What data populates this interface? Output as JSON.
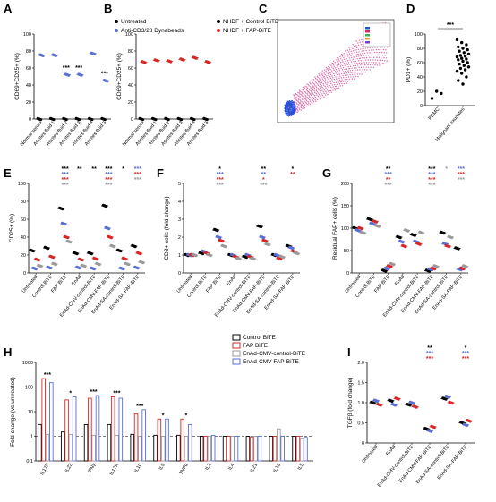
{
  "colors": {
    "black": "#000000",
    "blue": "#5b6fd6",
    "red": "#d62728",
    "grey": "#9a9a9a",
    "pink": "#e8a0c8"
  },
  "chart_data": [
    {
      "id": "A",
      "type": "scatter",
      "letter": "A",
      "ylabel": "CD69+CD25+ (%)",
      "ylim": [
        0,
        100
      ],
      "yticks": [
        0,
        20,
        40,
        60,
        80,
        100
      ],
      "categories": [
        "Normal serum",
        "Ascites fluid 1",
        "Ascites fluid 2",
        "Ascites fluid 3",
        "Ascites fluid 4",
        "Ascites fluid 5"
      ],
      "legend": [
        "Untreated",
        "Anti-CD3/28 Dynabeads"
      ],
      "series": [
        {
          "name": "Untreated",
          "color": "black",
          "values": [
            0,
            0,
            0,
            0,
            0,
            0
          ]
        },
        {
          "name": "Anti-CD3/28 Dynabeads",
          "color": "blue",
          "values": [
            75,
            75,
            52,
            52,
            77,
            45
          ]
        }
      ],
      "sig": [
        {
          "i": 2,
          "text": "***",
          "y": 56
        },
        {
          "i": 3,
          "text": "***",
          "y": 56
        },
        {
          "i": 5,
          "text": "***",
          "y": 49
        }
      ]
    },
    {
      "id": "B",
      "type": "scatter",
      "letter": "B",
      "ylabel": "CD69+CD25+ (%)",
      "ylim": [
        0,
        100
      ],
      "yticks": [
        0,
        20,
        40,
        60,
        80,
        100
      ],
      "categories": [
        "Normal serum",
        "Ascites fluid 1",
        "Ascites fluid 2",
        "Ascites fluid 3",
        "Ascites fluid 4",
        "Ascites fluid 5"
      ],
      "legend": [
        "NHDF + Control BiTE",
        "NHDF + FAP-BiTE"
      ],
      "series": [
        {
          "name": "NHDF + Control BiTE",
          "color": "black",
          "values": [
            0,
            0,
            0,
            0,
            0,
            0
          ]
        },
        {
          "name": "NHDF + FAP-BiTE",
          "color": "red",
          "values": [
            67,
            69,
            68,
            70,
            72,
            67
          ]
        }
      ]
    },
    {
      "id": "D",
      "type": "scatter",
      "letter": "D",
      "ylabel": "PD1+ (%)",
      "ylim": [
        0,
        100
      ],
      "yticks": [
        0,
        20,
        40,
        60,
        80,
        100
      ],
      "categories": [
        "PBMC",
        "Malignant exudates"
      ],
      "series": [
        {
          "name": "PBMC",
          "color": "black",
          "points": [
            [
              0,
              10
            ],
            [
              0,
              20
            ],
            [
              0,
              17
            ]
          ]
        },
        {
          "name": "Malignant exudates",
          "color": "black",
          "points": [
            [
              1,
              92
            ],
            [
              1,
              88
            ],
            [
              1,
              85
            ],
            [
              1,
              82
            ],
            [
              1,
              80
            ],
            [
              1,
              78
            ],
            [
              1,
              76
            ],
            [
              1,
              74
            ],
            [
              1,
              72
            ],
            [
              1,
              70
            ],
            [
              1,
              69
            ],
            [
              1,
              68
            ],
            [
              1,
              66
            ],
            [
              1,
              65
            ],
            [
              1,
              64
            ],
            [
              1,
              62
            ],
            [
              1,
              60
            ],
            [
              1,
              58
            ],
            [
              1,
              56
            ],
            [
              1,
              54
            ],
            [
              1,
              52
            ],
            [
              1,
              50
            ],
            [
              1,
              48
            ],
            [
              1,
              45
            ],
            [
              1,
              40
            ],
            [
              1,
              35
            ],
            [
              1,
              30
            ]
          ]
        }
      ],
      "sig": [
        {
          "text": "***"
        }
      ]
    },
    {
      "id": "E",
      "type": "scatter",
      "letter": "E",
      "ylabel": "CD25+ (%)",
      "ylim": [
        0,
        100
      ],
      "yticks": [
        0,
        20,
        40,
        60,
        80,
        100
      ],
      "categories": [
        "Untreated",
        "Control BiTE",
        "FAP BiTE",
        "EnAd",
        "EnAd-CMV-control-BiTE",
        "EnAd-CMV-FAP-BiTE",
        "EnAd-SA-control-BiTE",
        "EnAd-SA-FAP-BiTE"
      ],
      "series": [
        {
          "name": "black",
          "color": "black",
          "values": [
            25,
            28,
            72,
            22,
            22,
            75,
            25,
            30
          ]
        },
        {
          "name": "blue",
          "color": "blue",
          "values": [
            5,
            6,
            55,
            6,
            5,
            50,
            5,
            6
          ]
        },
        {
          "name": "red",
          "color": "red",
          "values": [
            15,
            18,
            40,
            15,
            16,
            40,
            16,
            22
          ]
        },
        {
          "name": "grey",
          "color": "grey",
          "values": [
            8,
            10,
            35,
            8,
            10,
            30,
            10,
            12
          ]
        }
      ],
      "sig": [
        {
          "i": 2,
          "lines": [
            [
              "***",
              "black"
            ],
            [
              "***",
              "blue"
            ],
            [
              "***",
              "red"
            ],
            [
              "***",
              "grey"
            ]
          ]
        },
        {
          "i": 3,
          "lines": [
            [
              "**",
              "black"
            ]
          ]
        },
        {
          "i": 4,
          "lines": [
            [
              "**",
              "black"
            ]
          ]
        },
        {
          "i": 5,
          "lines": [
            [
              "***",
              "black"
            ],
            [
              "***",
              "blue"
            ],
            [
              "***",
              "red"
            ],
            [
              "***",
              "grey"
            ]
          ]
        },
        {
          "i": 6,
          "lines": [
            [
              "*",
              "black"
            ]
          ]
        },
        {
          "i": 7,
          "lines": [
            [
              "***",
              "blue"
            ],
            [
              "***",
              "red"
            ],
            [
              "***",
              "grey"
            ]
          ]
        }
      ]
    },
    {
      "id": "F",
      "type": "scatter",
      "letter": "F",
      "ylabel": "CD3+ cells (fold change)",
      "ylim": [
        0,
        5
      ],
      "yticks": [
        0,
        1,
        2,
        3,
        4,
        5
      ],
      "categories": [
        "Untreated",
        "Control BiTE",
        "FAP BiTE",
        "EnAd",
        "EnAd-CMV-control-BiTE",
        "EnAd-CMV-FAP-BiTE",
        "EnAd-SA-control-BiTE",
        "EnAd-SA-FAP-BiTE"
      ],
      "series": [
        {
          "name": "black",
          "color": "black",
          "values": [
            1.0,
            1.1,
            2.4,
            1.0,
            0.9,
            2.6,
            1.0,
            1.5
          ]
        },
        {
          "name": "blue",
          "color": "blue",
          "values": [
            1.0,
            1.2,
            2.0,
            1.0,
            1.0,
            2.0,
            1.0,
            1.4
          ]
        },
        {
          "name": "red",
          "color": "red",
          "values": [
            1.0,
            1.1,
            1.8,
            0.9,
            0.9,
            1.8,
            0.8,
            1.2
          ]
        },
        {
          "name": "grey",
          "color": "grey",
          "values": [
            1.0,
            1.0,
            1.5,
            0.8,
            0.8,
            1.6,
            0.9,
            1.1
          ]
        }
      ],
      "sig": [
        {
          "i": 2,
          "lines": [
            [
              "*",
              "black"
            ],
            [
              "***",
              "blue"
            ],
            [
              "***",
              "red"
            ],
            [
              "***",
              "grey"
            ]
          ]
        },
        {
          "i": 5,
          "lines": [
            [
              "**",
              "black"
            ],
            [
              "**",
              "blue"
            ],
            [
              "*",
              "red"
            ],
            [
              "***",
              "grey"
            ]
          ]
        },
        {
          "i": 7,
          "lines": [
            [
              "*",
              "black"
            ],
            [
              "**",
              "red"
            ]
          ]
        }
      ]
    },
    {
      "id": "G",
      "type": "scatter",
      "letter": "G",
      "ylabel": "Residual FAP+ cells (%)",
      "ylim": [
        0,
        200
      ],
      "yticks": [
        0,
        50,
        100,
        150,
        200
      ],
      "categories": [
        "Untreated",
        "Control BiTE",
        "FAP BiTE",
        "EnAd",
        "EnAd-CMV-control-BiTE",
        "EnAd-CMV-FAP-BiTE",
        "EnAd-SA-control-BiTE",
        "EnAd-SA-FAP-BiTE"
      ],
      "series": [
        {
          "name": "black",
          "color": "black",
          "values": [
            100,
            120,
            5,
            80,
            85,
            5,
            90,
            55
          ]
        },
        {
          "name": "blue",
          "color": "blue",
          "values": [
            95,
            110,
            10,
            70,
            70,
            8,
            65,
            8
          ]
        },
        {
          "name": "red",
          "color": "red",
          "values": [
            100,
            115,
            15,
            60,
            65,
            10,
            60,
            10
          ]
        },
        {
          "name": "grey",
          "color": "grey",
          "values": [
            90,
            105,
            20,
            95,
            90,
            15,
            80,
            15
          ]
        }
      ],
      "sig": [
        {
          "i": 2,
          "lines": [
            [
              "**",
              "black"
            ],
            [
              "***",
              "blue"
            ],
            [
              "**",
              "red"
            ],
            [
              "***",
              "grey"
            ]
          ]
        },
        {
          "i": 5,
          "lines": [
            [
              "***",
              "black"
            ],
            [
              "***",
              "blue"
            ],
            [
              "***",
              "red"
            ],
            [
              "***",
              "grey"
            ]
          ]
        },
        {
          "i": 6,
          "lines": [
            [
              "*",
              "grey"
            ]
          ]
        },
        {
          "i": 7,
          "lines": [
            [
              "***",
              "blue"
            ],
            [
              "***",
              "red"
            ],
            [
              "***",
              "grey"
            ]
          ]
        }
      ]
    },
    {
      "id": "H",
      "type": "bar",
      "letter": "H",
      "ylabel": "Fold change (vs untreated)",
      "scale": "log",
      "ylim": [
        0.1,
        1000
      ],
      "yticks": [
        0.1,
        1,
        10,
        100,
        1000
      ],
      "ytick_labels": [
        "0.1",
        "1",
        "10",
        "100",
        "1000"
      ],
      "categories": [
        "IL17F",
        "IL22",
        "IFNγ",
        "IL17A",
        "IL10",
        "IL9",
        "TNFα",
        "IL2",
        "IL4",
        "IL21",
        "IL13",
        "IL5"
      ],
      "legend": [
        "Control BiTE",
        "FAP BiTE",
        "EnAd-CMV-control-BiTE",
        "EnAd-CMV-FAP-BiTE"
      ],
      "series": [
        {
          "name": "Control BiTE",
          "color": "black",
          "values": [
            3,
            1.5,
            3,
            3,
            1.2,
            1.1,
            1.1,
            1,
            1,
            1,
            1,
            1
          ]
        },
        {
          "name": "FAP BiTE",
          "color": "red",
          "values": [
            220,
            30,
            35,
            40,
            8,
            5,
            5,
            1,
            1,
            0.9,
            1,
            1
          ]
        },
        {
          "name": "EnAd-CMV-control-BiTE",
          "color": "grey",
          "values": [
            1.2,
            1.2,
            1.1,
            1.1,
            1,
            1,
            1,
            1,
            1,
            1,
            2,
            0.8
          ]
        },
        {
          "name": "EnAd-CMV-FAP-BiTE",
          "color": "blue",
          "values": [
            150,
            40,
            45,
            35,
            12,
            5,
            3,
            1.1,
            1,
            1,
            1,
            0.9
          ]
        }
      ],
      "sig": [
        {
          "i": 0,
          "text": "***"
        },
        {
          "i": 1,
          "text": "*"
        },
        {
          "i": 2,
          "text": "***"
        },
        {
          "i": 3,
          "text": "***"
        },
        {
          "i": 4,
          "text": "***"
        },
        {
          "i": 5,
          "text": "*"
        },
        {
          "i": 6,
          "text": "*"
        }
      ],
      "reference_line": 1
    },
    {
      "id": "I",
      "type": "scatter",
      "letter": "I",
      "ylabel": "TGFβ (fold change)",
      "ylim": [
        0,
        2.0
      ],
      "yticks": [
        0,
        0.5,
        1.0,
        1.5,
        2.0
      ],
      "ytick_labels": [
        "0",
        "0.5",
        "1.0",
        "1.5",
        "2.0"
      ],
      "categories": [
        "Untreated",
        "EnAd",
        "EnAd-CMV-control-BiTE",
        "EnAd-CMV-FAP-BiTE",
        "EnAd-SA-control-BiTE",
        "EnAd-SA-FAP-BiTE"
      ],
      "series": [
        {
          "name": "black",
          "color": "black",
          "values": [
            1.0,
            1.05,
            0.95,
            0.35,
            1.1,
            0.5
          ]
        },
        {
          "name": "blue",
          "color": "blue",
          "values": [
            1.05,
            0.95,
            1.0,
            0.3,
            1.15,
            0.45
          ]
        },
        {
          "name": "red",
          "color": "red",
          "values": [
            0.95,
            1.1,
            0.9,
            0.4,
            1.0,
            0.55
          ]
        }
      ],
      "sig": [
        {
          "i": 3,
          "lines": [
            [
              "**",
              "black"
            ],
            [
              "***",
              "blue"
            ],
            [
              "***",
              "red"
            ]
          ]
        },
        {
          "i": 5,
          "lines": [
            [
              "*",
              "black"
            ],
            [
              "***",
              "blue"
            ],
            [
              "***",
              "red"
            ]
          ]
        }
      ]
    }
  ],
  "facs": {
    "letter": "C"
  },
  "panels": {
    "A": "A",
    "B": "B",
    "C": "C",
    "D": "D",
    "E": "E",
    "F": "F",
    "G": "G",
    "H": "H",
    "I": "I"
  }
}
